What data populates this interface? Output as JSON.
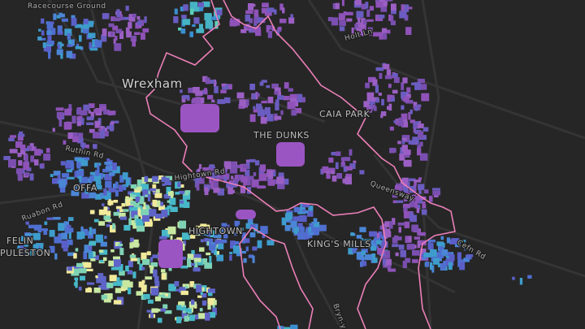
{
  "labels": [
    "Racecourse Ground",
    "Wrexham",
    "Holt Ln",
    "CAIA PARK",
    "THE DUNKS",
    "Ruthin Rd",
    "OFFA",
    "Ruabon Rd",
    "FELIN",
    "PULESTON",
    "HIGHTOWN",
    "KING'S MILLS",
    "Queensway",
    "Cefn Rd",
    "Bryn-y-",
    "Hightown Rd"
  ]
}
